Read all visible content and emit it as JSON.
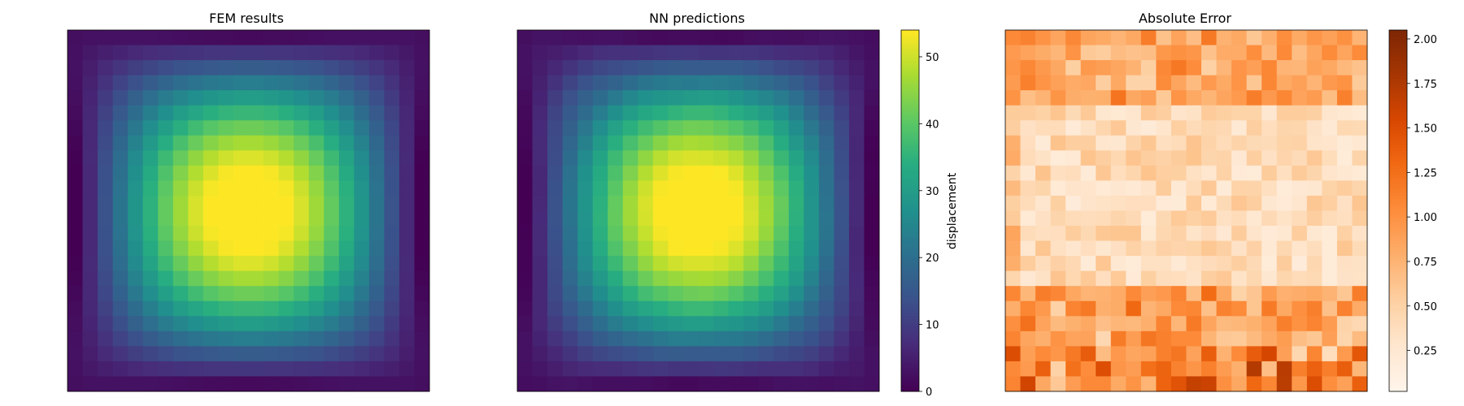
{
  "chart_data": [
    {
      "type": "heatmap",
      "title": "FEM results",
      "grid": [
        24,
        24
      ],
      "field": "displacement",
      "colormap": "viridis",
      "value_range": [
        0,
        54
      ],
      "peak": 54
    },
    {
      "type": "heatmap",
      "title": "NN predictions",
      "grid": [
        24,
        24
      ],
      "field": "displacement",
      "colormap": "viridis",
      "value_range": [
        0,
        54
      ],
      "peak": 54,
      "colorbar": {
        "label": "displacement",
        "ticks": [
          0,
          10,
          20,
          30,
          40,
          50
        ],
        "tick_labels": [
          "0",
          "10",
          "20",
          "30",
          "40",
          "50"
        ],
        "range": [
          0,
          54
        ]
      }
    },
    {
      "type": "heatmap",
      "title": "Absolute Error",
      "grid": [
        24,
        24
      ],
      "colormap": "Oranges",
      "value_range": [
        0.02,
        2.05
      ],
      "colorbar": {
        "label": "",
        "ticks": [
          0.25,
          0.5,
          0.75,
          1.0,
          1.25,
          1.5,
          1.75,
          2.0
        ],
        "tick_labels": [
          "0.25",
          "0.50",
          "0.75",
          "1.00",
          "1.25",
          "1.50",
          "1.75",
          "2.00"
        ],
        "range": [
          0.02,
          2.05
        ]
      }
    }
  ]
}
